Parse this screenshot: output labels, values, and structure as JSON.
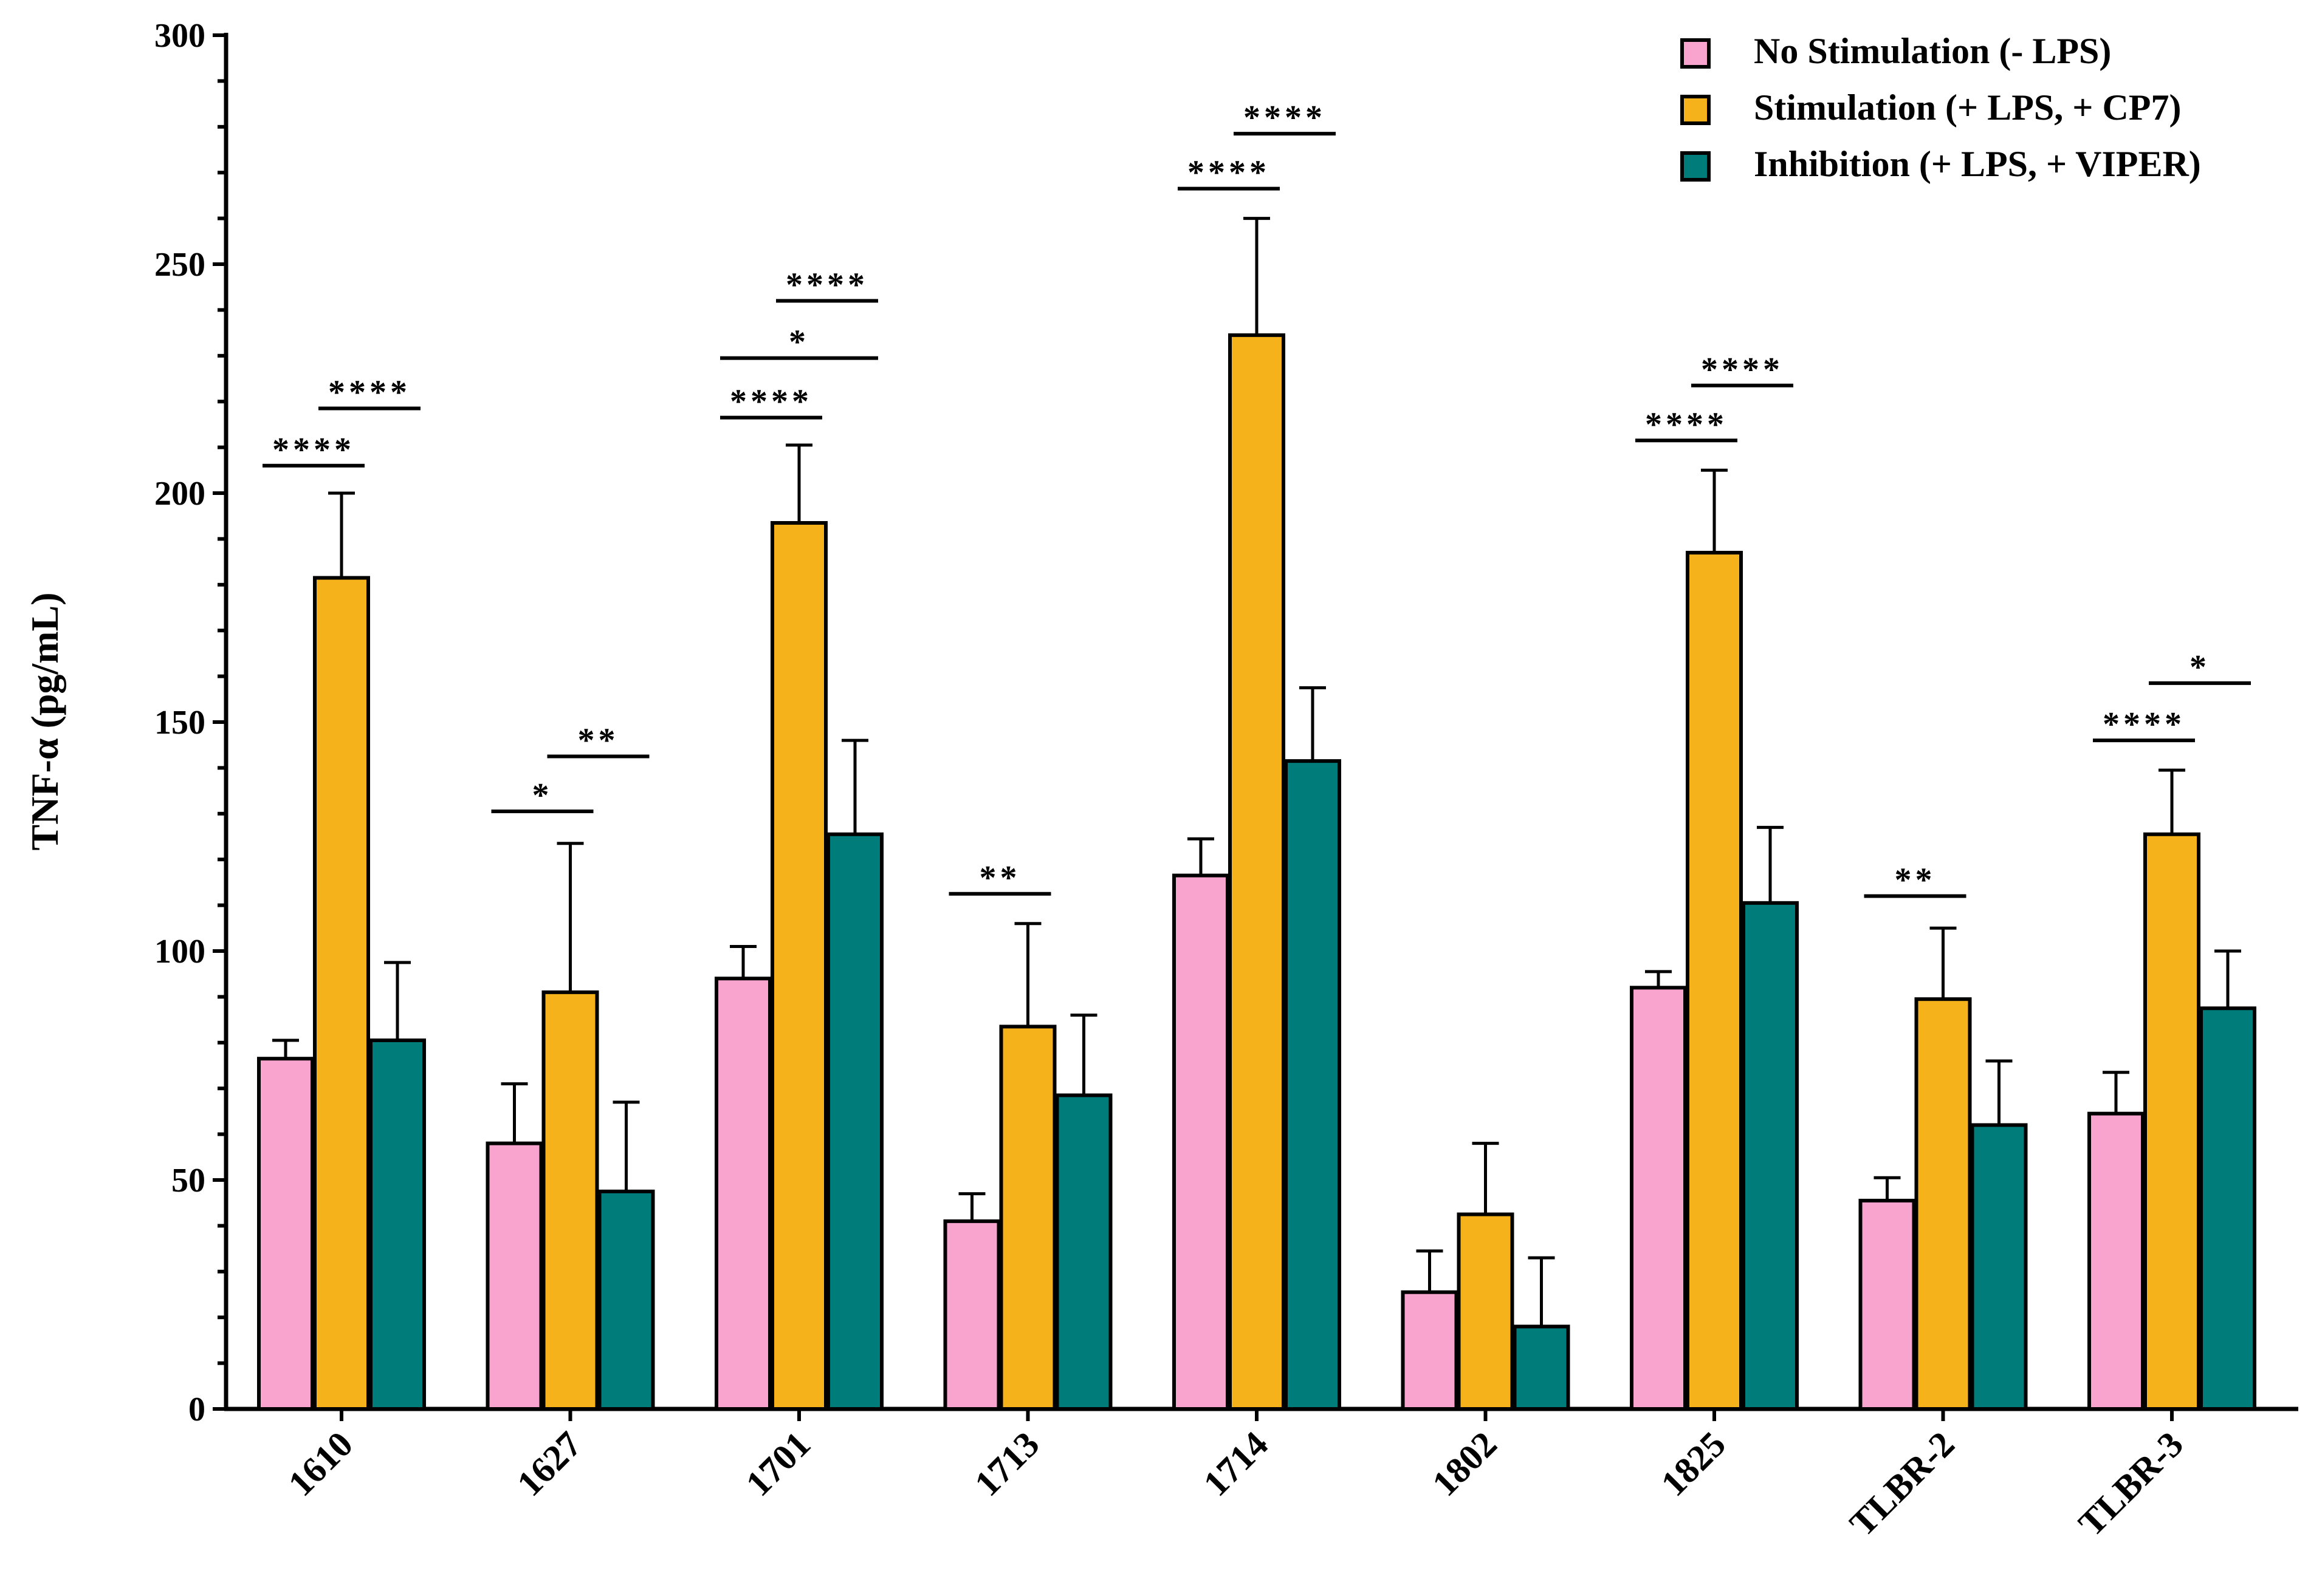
{
  "chart_data": {
    "type": "bar",
    "title": "",
    "xlabel": "",
    "ylabel": "TNF-α (pg/mL)",
    "ylim": [
      0,
      300
    ],
    "yticks_major": [
      0,
      50,
      100,
      150,
      200,
      250,
      300
    ],
    "categories": [
      "1610",
      "1627",
      "1701",
      "1713",
      "1714",
      "1802",
      "1825",
      "TLBR-2",
      "TLBR-3"
    ],
    "series": [
      {
        "name": "No Stimulation (- LPS)",
        "color": "#F9A3CF",
        "values": [
          76.5,
          58,
          94,
          41,
          116.5,
          25.5,
          92,
          45.5,
          64.5
        ],
        "errors": [
          4,
          13,
          7,
          6,
          8,
          9,
          3.5,
          5,
          9
        ]
      },
      {
        "name": "Stimulation (+ LPS, + CP7)",
        "color": "#F6B21B",
        "values": [
          181.5,
          91,
          193.5,
          83.5,
          234.5,
          42.5,
          187,
          89.5,
          125.5
        ],
        "errors": [
          18.5,
          32.5,
          17,
          22.5,
          25.5,
          15.5,
          18,
          15.5,
          14
        ]
      },
      {
        "name": "Inhibition (+ LPS, + VIPER)",
        "color": "#007C7A",
        "values": [
          80.5,
          47.5,
          125.5,
          68.5,
          141.5,
          18,
          110.5,
          62,
          87.5
        ],
        "errors": [
          17,
          19.5,
          20.5,
          17.5,
          16,
          15,
          16.5,
          14,
          12.5
        ]
      }
    ],
    "significance": [
      {
        "category": 0,
        "from": 0,
        "to": 1,
        "label": "****",
        "y": 206
      },
      {
        "category": 0,
        "from": 1,
        "to": 2,
        "label": "****",
        "y": 218.5
      },
      {
        "category": 1,
        "from": 0,
        "to": 1,
        "label": "*",
        "y": 130.5
      },
      {
        "category": 1,
        "from": 1,
        "to": 2,
        "label": "**",
        "y": 142.5
      },
      {
        "category": 2,
        "from": 0,
        "to": 1,
        "label": "****",
        "y": 216.5
      },
      {
        "category": 2,
        "from": 0,
        "to": 2,
        "label": "*",
        "y": 229.5
      },
      {
        "category": 2,
        "from": 1,
        "to": 2,
        "label": "****",
        "y": 242
      },
      {
        "category": 3,
        "from": 0,
        "to": 1,
        "label": "**",
        "y": 112.5
      },
      {
        "category": 4,
        "from": 0,
        "to": 1,
        "label": "****",
        "y": 266.5
      },
      {
        "category": 4,
        "from": 1,
        "to": 2,
        "label": "****",
        "y": 278.5
      },
      {
        "category": 6,
        "from": 0,
        "to": 1,
        "label": "****",
        "y": 211.5
      },
      {
        "category": 6,
        "from": 1,
        "to": 2,
        "label": "****",
        "y": 223.5
      },
      {
        "category": 7,
        "from": 0,
        "to": 1,
        "label": "**",
        "y": 112
      },
      {
        "category": 8,
        "from": 0,
        "to": 1,
        "label": "****",
        "y": 146
      },
      {
        "category": 8,
        "from": 1,
        "to": 2,
        "label": "*",
        "y": 158.5
      }
    ],
    "legend_position": "top-right",
    "grid": false
  }
}
